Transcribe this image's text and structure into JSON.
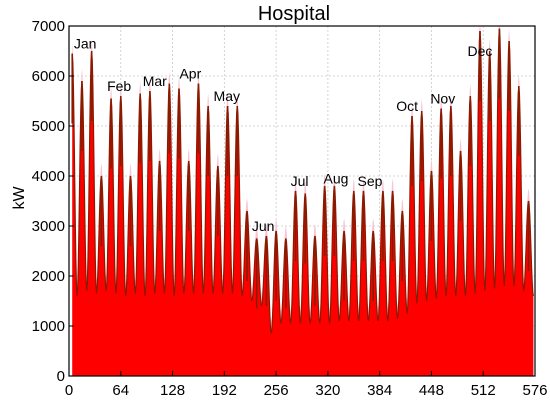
{
  "chart_data": {
    "type": "area",
    "title": "Hospital",
    "xlabel": "",
    "ylabel": "kW",
    "xlim": [
      0,
      576
    ],
    "ylim": [
      0,
      7000
    ],
    "xticks": [
      0,
      64,
      128,
      192,
      256,
      320,
      384,
      448,
      512,
      576
    ],
    "yticks": [
      0,
      1000,
      2000,
      3000,
      4000,
      5000,
      6000,
      7000
    ],
    "grid": true,
    "fill_color": "#ff0000",
    "line_color": "#8b1a00",
    "envelope_color": "#f5c6d6",
    "month_labels": [
      {
        "text": "Jan",
        "x": 20,
        "y": 6550
      },
      {
        "text": "Feb",
        "x": 62,
        "y": 5700
      },
      {
        "text": "Mar",
        "x": 106,
        "y": 5800
      },
      {
        "text": "Apr",
        "x": 150,
        "y": 5950
      },
      {
        "text": "May",
        "x": 195,
        "y": 5500
      },
      {
        "text": "Jun",
        "x": 240,
        "y": 2900
      },
      {
        "text": "Jul",
        "x": 285,
        "y": 3800
      },
      {
        "text": "Aug",
        "x": 330,
        "y": 3850
      },
      {
        "text": "Sep",
        "x": 372,
        "y": 3800
      },
      {
        "text": "Oct",
        "x": 418,
        "y": 5300
      },
      {
        "text": "Nov",
        "x": 462,
        "y": 5450
      },
      {
        "text": "Dec",
        "x": 508,
        "y": 6400
      }
    ],
    "series": [
      {
        "daily_peaks": [
          [
            4,
            6450
          ],
          [
            16,
            5900
          ],
          [
            28,
            6500
          ],
          [
            40,
            4000
          ],
          [
            52,
            5550
          ],
          [
            64,
            5600
          ],
          [
            76,
            4000
          ],
          [
            88,
            5650
          ],
          [
            100,
            5700
          ],
          [
            112,
            4300
          ],
          [
            124,
            5850
          ],
          [
            136,
            5750
          ],
          [
            148,
            4300
          ],
          [
            160,
            5850
          ],
          [
            172,
            5400
          ],
          [
            184,
            4200
          ],
          [
            196,
            5400
          ],
          [
            208,
            5400
          ],
          [
            220,
            3300
          ],
          [
            232,
            2750
          ],
          [
            244,
            2800
          ],
          [
            256,
            2900
          ],
          [
            268,
            2750
          ],
          [
            280,
            3700
          ],
          [
            292,
            3650
          ],
          [
            304,
            2800
          ],
          [
            316,
            3800
          ],
          [
            328,
            3800
          ],
          [
            340,
            2900
          ],
          [
            352,
            3700
          ],
          [
            364,
            3700
          ],
          [
            376,
            2900
          ],
          [
            388,
            3700
          ],
          [
            400,
            3700
          ],
          [
            412,
            3300
          ],
          [
            424,
            5200
          ],
          [
            436,
            5300
          ],
          [
            448,
            4100
          ],
          [
            460,
            5350
          ],
          [
            472,
            5400
          ],
          [
            484,
            4500
          ],
          [
            496,
            5600
          ],
          [
            508,
            6900
          ],
          [
            520,
            6500
          ],
          [
            532,
            6950
          ],
          [
            544,
            6700
          ],
          [
            556,
            5800
          ],
          [
            568,
            3500
          ]
        ],
        "daily_troughs": [
          [
            10,
            1600
          ],
          [
            22,
            1700
          ],
          [
            34,
            1650
          ],
          [
            46,
            1700
          ],
          [
            58,
            1650
          ],
          [
            70,
            1600
          ],
          [
            82,
            1650
          ],
          [
            94,
            1600
          ],
          [
            106,
            1650
          ],
          [
            118,
            1650
          ],
          [
            130,
            1600
          ],
          [
            142,
            1650
          ],
          [
            154,
            1650
          ],
          [
            166,
            1650
          ],
          [
            178,
            1650
          ],
          [
            190,
            1650
          ],
          [
            202,
            1650
          ],
          [
            214,
            1600
          ],
          [
            226,
            1500
          ],
          [
            238,
            1400
          ],
          [
            250,
            850
          ],
          [
            262,
            1050
          ],
          [
            274,
            1050
          ],
          [
            286,
            1050
          ],
          [
            298,
            1050
          ],
          [
            310,
            1050
          ],
          [
            322,
            1050
          ],
          [
            334,
            1100
          ],
          [
            346,
            1100
          ],
          [
            358,
            1100
          ],
          [
            370,
            1100
          ],
          [
            382,
            1100
          ],
          [
            394,
            1100
          ],
          [
            406,
            1150
          ],
          [
            418,
            1250
          ],
          [
            430,
            1450
          ],
          [
            442,
            1500
          ],
          [
            454,
            1550
          ],
          [
            466,
            1600
          ],
          [
            478,
            1600
          ],
          [
            490,
            1600
          ],
          [
            502,
            1650
          ],
          [
            514,
            1700
          ],
          [
            526,
            1750
          ],
          [
            538,
            1800
          ],
          [
            550,
            1800
          ],
          [
            562,
            1700
          ],
          [
            574,
            1600
          ]
        ]
      }
    ]
  }
}
